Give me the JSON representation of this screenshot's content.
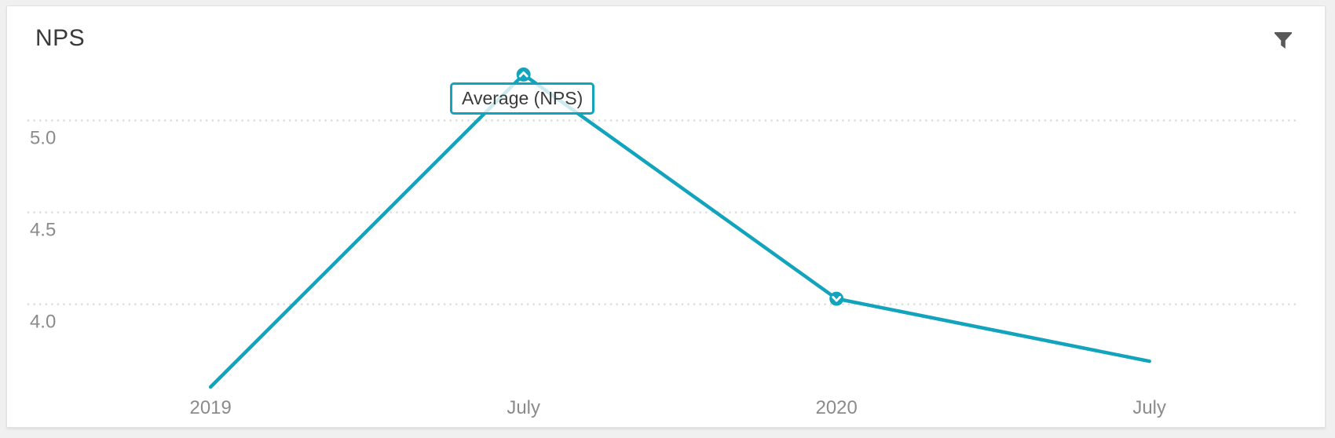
{
  "card": {
    "title": "NPS"
  },
  "toolbar": {
    "filter_icon": "filter-funnel"
  },
  "tooltip": {
    "text": "Average (NPS)"
  },
  "colors": {
    "line": "#12a3bd",
    "marker_fill": "#12a3bd",
    "marker_glyph": "#ffffff",
    "grid": "#dedede",
    "axis_label": "#8b8b8b",
    "title_text": "#3a3a3a",
    "tooltip_border": "#12a3bd",
    "tooltip_text": "#3a3a3a",
    "filter_icon": "#595959",
    "page_bg": "#f0f0f1",
    "card_bg": "#ffffff",
    "card_border": "#e2e2e3"
  },
  "chart_data": {
    "type": "line",
    "title": "NPS",
    "categories": [
      "2019",
      "July",
      "2020",
      "July"
    ],
    "series": [
      {
        "name": "Average (NPS)",
        "values": [
          3.55,
          5.25,
          4.03,
          3.69
        ]
      }
    ],
    "y_ticks": [
      {
        "label": "5.0",
        "value": 5.0
      },
      {
        "label": "4.5",
        "value": 4.5
      },
      {
        "label": "4.0",
        "value": 4.0
      }
    ],
    "ylim": [
      3.4,
      5.45
    ],
    "xlabel": "",
    "ylabel": "",
    "grid": "dotted-horizontal",
    "legend_position": "none",
    "point_markers": [
      {
        "index": 1,
        "shape": "chevron-up-circle"
      },
      {
        "index": 2,
        "shape": "chevron-down-circle"
      }
    ],
    "tooltip": {
      "text": "Average (NPS)",
      "attached_to_index": 1
    }
  }
}
